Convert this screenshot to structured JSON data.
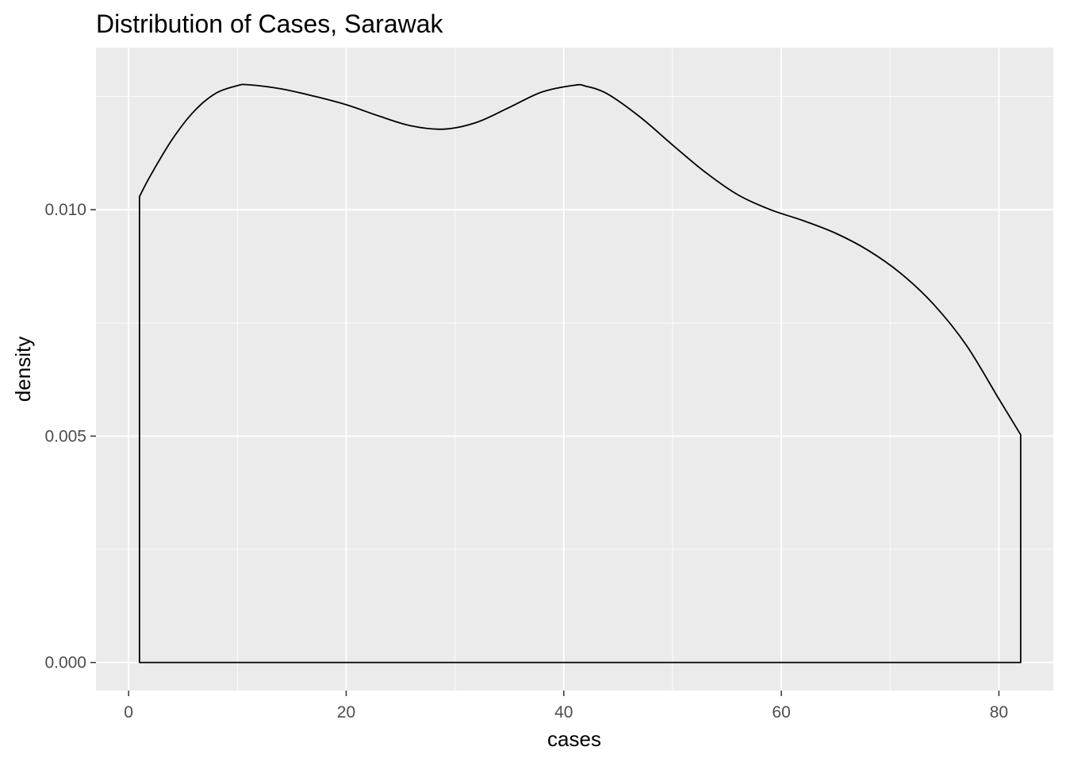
{
  "chart_data": {
    "type": "area",
    "title": "Distribution of Cases, Sarawak",
    "xlabel": "cases",
    "ylabel": "density",
    "xlim": [
      -3,
      85
    ],
    "ylim": [
      -0.00062,
      0.01358
    ],
    "x_ticks": [
      0,
      20,
      40,
      60,
      80
    ],
    "x_tick_labels": [
      "0",
      "20",
      "40",
      "60",
      "80"
    ],
    "y_ticks": [
      0.0,
      0.005,
      0.01
    ],
    "y_tick_labels": [
      "0.000",
      "0.005",
      "0.010"
    ],
    "grid": true,
    "legend": "none",
    "panel_background": "#ebebeb",
    "grid_color": "#ffffff",
    "line_color": "#000000",
    "fill": "none",
    "series": [
      {
        "x": [
          1,
          2,
          4,
          6,
          8,
          10,
          11,
          14,
          17,
          20,
          23,
          26,
          29,
          32,
          35,
          38,
          41,
          42,
          44,
          47,
          50,
          53,
          56,
          59,
          62,
          65,
          68,
          71,
          74,
          77,
          80,
          82
        ],
        "y": [
          0.01029,
          0.01075,
          0.01155,
          0.01217,
          0.01257,
          0.01274,
          0.01276,
          0.01267,
          0.01251,
          0.01232,
          0.01207,
          0.01185,
          0.01178,
          0.01193,
          0.01226,
          0.0126,
          0.01275,
          0.01273,
          0.01256,
          0.01205,
          0.01143,
          0.01083,
          0.01033,
          0.01,
          0.00976,
          0.00948,
          0.0091,
          0.00859,
          0.00791,
          0.00701,
          0.00582,
          0.00503
        ]
      }
    ]
  }
}
